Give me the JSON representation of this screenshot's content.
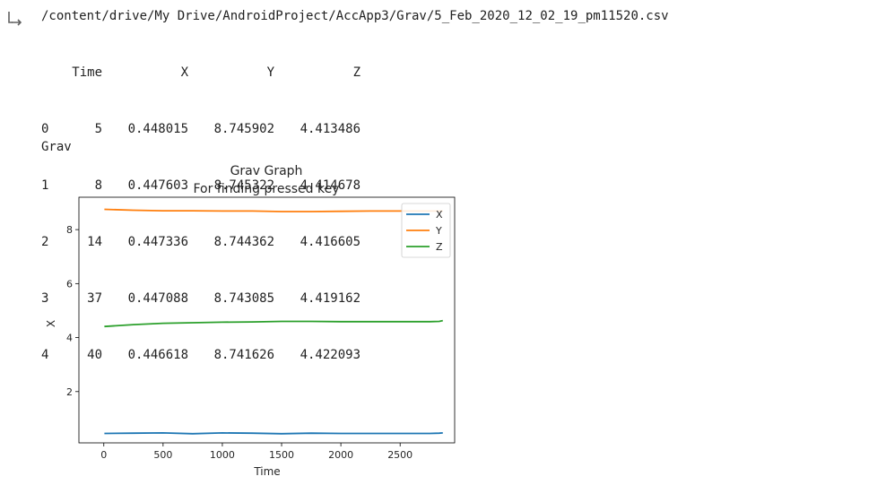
{
  "output": {
    "icon": "output-arrow-icon",
    "path": "/content/drive/My Drive/AndroidProject/AccApp3/Grav/5_Feb_2020_12_02_19_pm11520.csv",
    "label": "Grav"
  },
  "dataframe": {
    "columns": [
      "",
      "Time",
      "X",
      "Y",
      "Z"
    ],
    "rows": [
      [
        "0",
        "5",
        "0.448015",
        "8.745902",
        "4.413486"
      ],
      [
        "1",
        "8",
        "0.447603",
        "8.745322",
        "4.414678"
      ],
      [
        "2",
        "14",
        "0.447336",
        "8.744362",
        "4.416605"
      ],
      [
        "3",
        "37",
        "0.447088",
        "8.743085",
        "4.419162"
      ],
      [
        "4",
        "40",
        "0.446618",
        "8.741626",
        "4.422093"
      ]
    ]
  },
  "chart_data": {
    "type": "line",
    "title": "Grav Graph",
    "subtitle": "For finding pressed key",
    "xlabel": "Time",
    "ylabel": "X",
    "xlim": [
      -210,
      2960
    ],
    "ylim": [
      0.1,
      9.2
    ],
    "xticks": [
      0,
      500,
      1000,
      1500,
      2000,
      2500
    ],
    "yticks": [
      2,
      4,
      6,
      8
    ],
    "legend_position": "top-right",
    "grid": false,
    "x": [
      5,
      250,
      500,
      750,
      1000,
      1250,
      1500,
      1750,
      2000,
      2250,
      2500,
      2750,
      2830,
      2860
    ],
    "series": [
      {
        "name": "X",
        "color": "#1f77b4",
        "values": [
          0.45,
          0.46,
          0.47,
          0.44,
          0.47,
          0.46,
          0.44,
          0.46,
          0.45,
          0.45,
          0.45,
          0.45,
          0.46,
          0.47
        ]
      },
      {
        "name": "Y",
        "color": "#ff7f0e",
        "values": [
          8.75,
          8.72,
          8.7,
          8.7,
          8.69,
          8.69,
          8.67,
          8.67,
          8.68,
          8.69,
          8.69,
          8.69,
          8.69,
          8.69
        ]
      },
      {
        "name": "Z",
        "color": "#2ca02c",
        "values": [
          4.41,
          4.48,
          4.53,
          4.55,
          4.57,
          4.58,
          4.6,
          4.6,
          4.59,
          4.59,
          4.59,
          4.59,
          4.6,
          4.63
        ]
      }
    ]
  }
}
